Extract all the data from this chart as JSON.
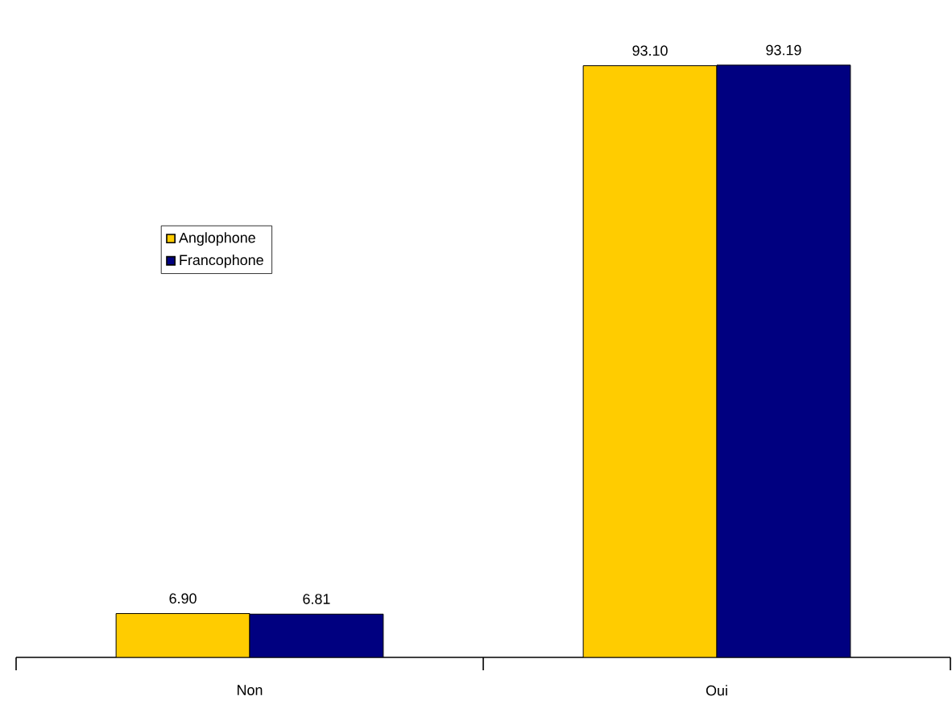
{
  "chart_data": {
    "type": "bar",
    "categories": [
      "Non",
      "Oui"
    ],
    "series": [
      {
        "name": "Anglophone",
        "color": "#ffcc00",
        "values": [
          6.9,
          93.1
        ],
        "value_labels": [
          "6.90",
          "93.10"
        ]
      },
      {
        "name": "Francophone",
        "color": "#000080",
        "values": [
          6.81,
          93.19
        ],
        "value_labels": [
          "6.81",
          "93.19"
        ]
      }
    ],
    "legend": "left"
  }
}
